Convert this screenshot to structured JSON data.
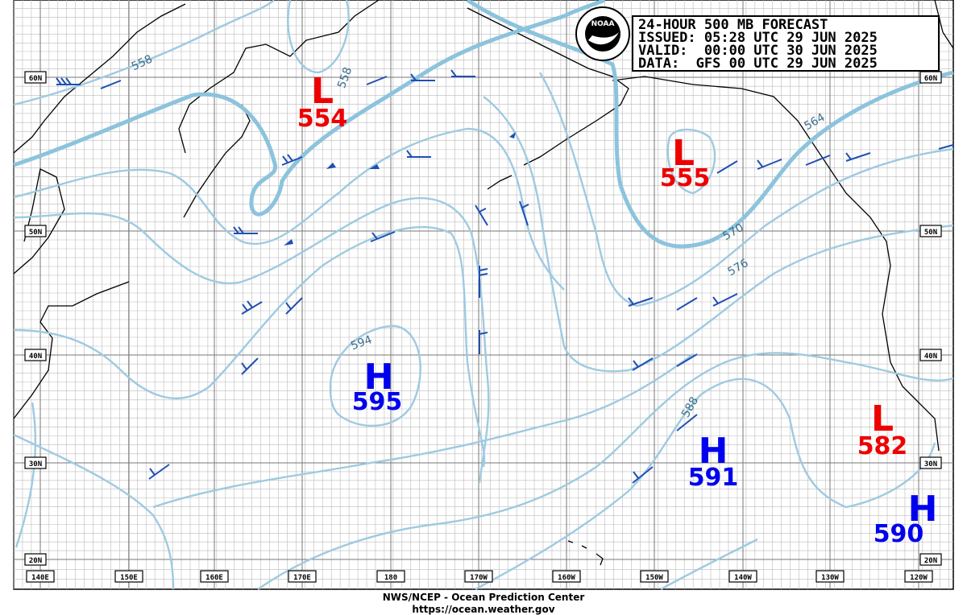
{
  "header": {
    "title": "24-HOUR 500 MB FORECAST",
    "issued": "ISSUED: 05:28 UTC 29 JUN 2025",
    "valid": "VALID:  00:00 UTC 30 JUN 2025",
    "data": "DATA:  GFS 00 UTC 29 JUN 2025"
  },
  "logo": "NOAA",
  "centers": [
    {
      "type": "L",
      "value": "554"
    },
    {
      "type": "L",
      "value": "555"
    },
    {
      "type": "H",
      "value": "595"
    },
    {
      "type": "H",
      "value": "591"
    },
    {
      "type": "L",
      "value": "582"
    },
    {
      "type": "H",
      "value": "590"
    }
  ],
  "contour_labels": [
    "558",
    "558",
    "564",
    "570",
    "576",
    "588",
    "594"
  ],
  "lat_labels": [
    "60N",
    "50N",
    "40N",
    "30N",
    "20N"
  ],
  "lon_labels": [
    "140E",
    "150E",
    "160E",
    "170E",
    "180",
    "170W",
    "160W",
    "150W",
    "140W",
    "130W",
    "120W"
  ],
  "footer": {
    "agency": "NWS/NCEP - Ocean Prediction Center",
    "url": "https://ocean.weather.gov"
  }
}
